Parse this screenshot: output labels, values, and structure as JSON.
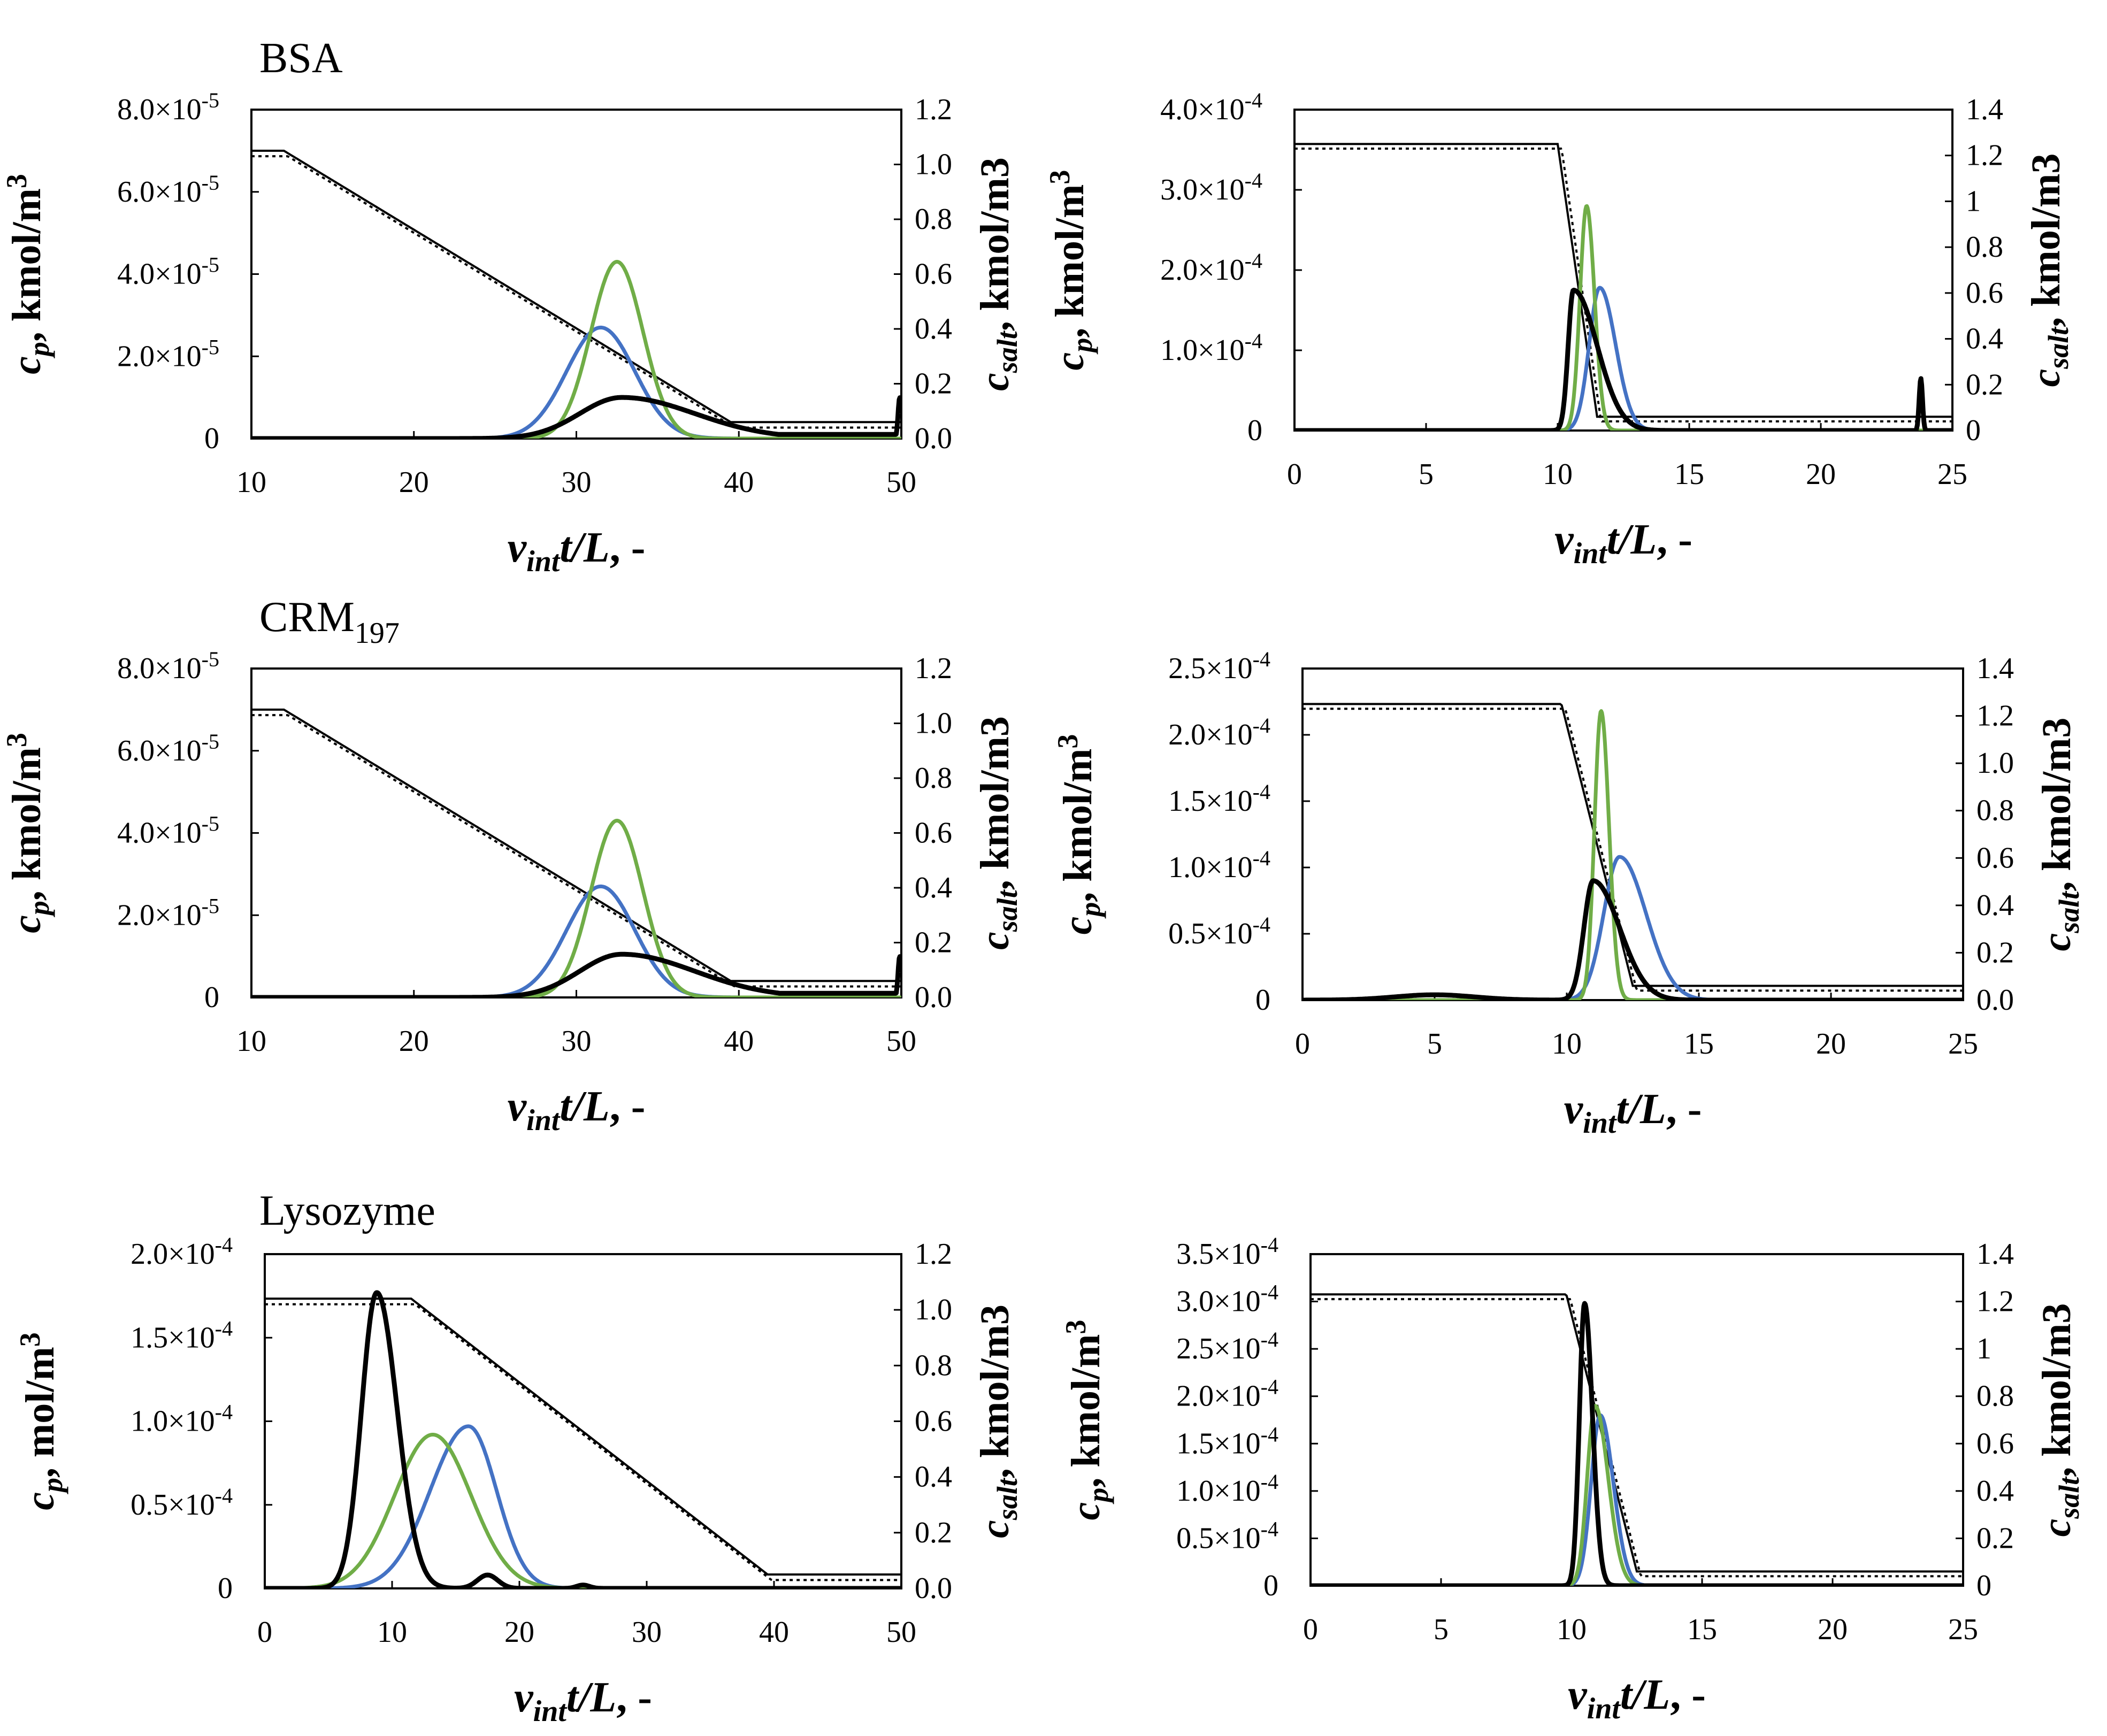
{
  "colors": {
    "black": "#000000",
    "blue": "#4472c4",
    "green": "#70ad47"
  },
  "chart_data": [
    {
      "type": "line",
      "title": "BSA",
      "xlabel": "vintt/L, -",
      "ylabel": "cp, kmol/m3",
      "y2label": "csalt, kmol/m3",
      "xlim": [
        10,
        50
      ],
      "xticks": [
        "10",
        "20",
        "30",
        "40",
        "50"
      ],
      "ylim": [
        0,
        8e-05
      ],
      "yticks": [
        "0",
        "2.0×10-5",
        "4.0×10-5",
        "6.0×10-5",
        "8.0×10-5"
      ],
      "y2lim": [
        0,
        1.2
      ],
      "y2ticks": [
        "0.0",
        "0.2",
        "0.4",
        "0.6",
        "0.8",
        "1.0",
        "1.2"
      ],
      "salt": {
        "start_x": 10,
        "plateau_high": 1.05,
        "ramp_start_x": 12,
        "ramp_end_x": 39.5,
        "plateau_low": 0.06,
        "end_x": 50
      },
      "series": [
        {
          "name": "black",
          "peaks": [
            [
              32.8,
              1e-05,
              2.6,
              4.5
            ]
          ],
          "tail": 1e-06,
          "spike": [
            49.9,
            1e-05
          ]
        },
        {
          "name": "blue",
          "peaks": [
            [
              31.5,
              2.7e-05,
              2.1,
              2.1
            ]
          ]
        },
        {
          "name": "green",
          "peaks": [
            [
              32.5,
              4.3e-05,
              1.6,
              1.6
            ]
          ]
        }
      ]
    },
    {
      "type": "line",
      "title": "",
      "xlabel": "vintt/L, -",
      "ylabel": "cp, kmol/m3",
      "y2label": "csalt, kmol/m3",
      "xlim": [
        0,
        25
      ],
      "xticks": [
        "0",
        "5",
        "10",
        "15",
        "20",
        "25"
      ],
      "ylim": [
        0,
        0.0004
      ],
      "yticks": [
        "0",
        "1.0×10-4",
        "2.0×10-4",
        "3.0×10-4",
        "4.0×10-4"
      ],
      "y2lim": [
        0,
        1.4
      ],
      "y2ticks": [
        "0",
        "0.2",
        "0.4",
        "0.6",
        "0.8",
        "1",
        "1.2",
        "1.4"
      ],
      "salt": {
        "start_x": 0,
        "plateau_high": 1.25,
        "ramp_start_x": 10,
        "ramp_end_x": 11.5,
        "plateau_low": 0.06,
        "end_x": 25
      },
      "series": [
        {
          "name": "black",
          "peaks": [
            [
              10.6,
              0.000175,
              0.2,
              0.9
            ]
          ],
          "spike": [
            23.8,
            6.5e-05
          ]
        },
        {
          "name": "blue",
          "peaks": [
            [
              11.6,
              0.000178,
              0.4,
              0.6
            ]
          ]
        },
        {
          "name": "green",
          "peaks": [
            [
              11.1,
              0.00028,
              0.25,
              0.3
            ]
          ]
        }
      ]
    },
    {
      "type": "line",
      "title": "CRM197",
      "xlabel": "vintt/L, -",
      "ylabel": "cp, kmol/m3",
      "y2label": "csalt, kmol/m3",
      "xlim": [
        10,
        50
      ],
      "xticks": [
        "10",
        "20",
        "30",
        "40",
        "50"
      ],
      "ylim": [
        0,
        8e-05
      ],
      "yticks": [
        "0",
        "2.0×10-5",
        "4.0×10-5",
        "6.0×10-5",
        "8.0×10-5"
      ],
      "y2lim": [
        0,
        1.2
      ],
      "y2ticks": [
        "0.0",
        "0.2",
        "0.4",
        "0.6",
        "0.8",
        "1.0",
        "1.2"
      ],
      "salt": {
        "start_x": 10,
        "plateau_high": 1.05,
        "ramp_start_x": 12,
        "ramp_end_x": 39.5,
        "plateau_low": 0.06,
        "end_x": 50
      },
      "series": [
        {
          "name": "black",
          "peaks": [
            [
              32.8,
              1.05e-05,
              2.6,
              4.5
            ]
          ],
          "tail": 1e-06,
          "spike": [
            49.9,
            1e-05
          ]
        },
        {
          "name": "blue",
          "peaks": [
            [
              31.5,
              2.7e-05,
              2.1,
              2.1
            ]
          ]
        },
        {
          "name": "green",
          "peaks": [
            [
              32.5,
              4.3e-05,
              1.6,
              1.6
            ]
          ]
        }
      ]
    },
    {
      "type": "line",
      "title": "",
      "xlabel": "vintt/L, -",
      "ylabel": "cp, kmol/m3",
      "y2label": "csalt, kmol/m3",
      "xlim": [
        0,
        25
      ],
      "xticks": [
        "0",
        "5",
        "10",
        "15",
        "20",
        "25"
      ],
      "ylim": [
        0,
        0.00025
      ],
      "yticks": [
        "0",
        "0.5×10-4",
        "1.0×10-4",
        "1.5×10-4",
        "2.0×10-4",
        "2.5×10-4"
      ],
      "y2lim": [
        0,
        1.4
      ],
      "y2ticks": [
        "0.0",
        "0.2",
        "0.4",
        "0.6",
        "0.8",
        "1.0",
        "1.2",
        "1.4"
      ],
      "salt": {
        "start_x": 0,
        "plateau_high": 1.25,
        "ramp_start_x": 9.8,
        "ramp_end_x": 12.5,
        "plateau_low": 0.06,
        "end_x": 25
      },
      "series": [
        {
          "name": "black",
          "peaks": [
            [
              11.0,
              9e-05,
              0.35,
              1.0
            ],
            [
              5.0,
              4e-06,
              1.5,
              1.5
            ]
          ]
        },
        {
          "name": "blue",
          "peaks": [
            [
              12.0,
              0.000108,
              0.6,
              1.0
            ]
          ]
        },
        {
          "name": "green",
          "peaks": [
            [
              11.3,
              0.000218,
              0.25,
              0.3
            ]
          ]
        }
      ]
    },
    {
      "type": "line",
      "title": "Lysozyme",
      "xlabel": "vintt/L, -",
      "ylabel": "cp, mol/m3",
      "y2label": "csalt, kmol/m3",
      "xlim": [
        0,
        50
      ],
      "xticks": [
        "0",
        "10",
        "20",
        "30",
        "40",
        "50"
      ],
      "ylim": [
        0,
        0.0002
      ],
      "yticks": [
        "0",
        "0.5×10-4",
        "1.0×10-4",
        "1.5×10-4",
        "2.0×10-4"
      ],
      "y2lim": [
        0,
        1.2
      ],
      "y2ticks": [
        "0.0",
        "0.2",
        "0.4",
        "0.6",
        "0.8",
        "1.0",
        "1.2"
      ],
      "salt": {
        "start_x": 0,
        "plateau_high": 1.04,
        "ramp_start_x": 11.5,
        "ramp_end_x": 39.5,
        "plateau_low": 0.05,
        "end_x": 50
      },
      "series": [
        {
          "name": "black",
          "peaks": [
            [
              8.8,
              0.000177,
              1.2,
              1.6
            ],
            [
              17.5,
              8e-06,
              0.8,
              0.8
            ],
            [
              25.0,
              2e-06,
              0.5,
              0.5
            ]
          ]
        },
        {
          "name": "blue",
          "peaks": [
            [
              16.0,
              9.7e-05,
              3.0,
              2.2
            ]
          ]
        },
        {
          "name": "green",
          "peaks": [
            [
              13.2,
              9.2e-05,
              3.0,
              3.0
            ]
          ]
        }
      ]
    },
    {
      "type": "line",
      "title": "",
      "xlabel": "vintt/L, -",
      "ylabel": "cp, kmol/m3",
      "y2label": "csalt, kmol/m3",
      "xlim": [
        0,
        25
      ],
      "xticks": [
        "0",
        "5",
        "10",
        "15",
        "20",
        "25"
      ],
      "ylim": [
        0,
        0.00035
      ],
      "yticks": [
        "0",
        "0.5×10-4",
        "1.0×10-4",
        "1.5×10-4",
        "2.0×10-4",
        "2.5×10-4",
        "3.0×10-4",
        "3.5×10-4"
      ],
      "y2lim": [
        0,
        1.4
      ],
      "y2ticks": [
        "0",
        "0.2",
        "0.4",
        "0.6",
        "0.8",
        "1",
        "1.2",
        "1.4"
      ],
      "salt": {
        "start_x": 0,
        "plateau_high": 1.23,
        "ramp_start_x": 9.8,
        "ramp_end_x": 12.5,
        "plateau_low": 0.06,
        "end_x": 25
      },
      "series": [
        {
          "name": "black",
          "peaks": [
            [
              10.5,
              0.000298,
              0.2,
              0.3
            ]
          ]
        },
        {
          "name": "blue",
          "peaks": [
            [
              11.1,
              0.00018,
              0.35,
              0.5
            ]
          ]
        },
        {
          "name": "green",
          "peaks": [
            [
              10.9,
              0.00019,
              0.3,
              0.5
            ]
          ]
        }
      ]
    }
  ]
}
